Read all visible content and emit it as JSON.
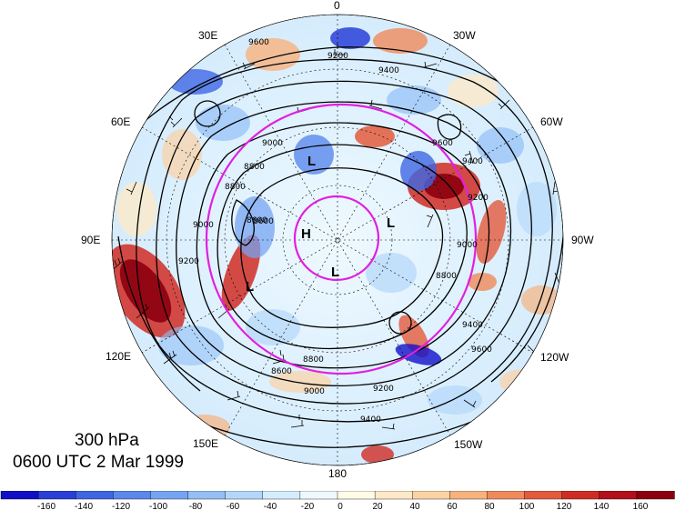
{
  "title": {
    "level": "300 hPa",
    "time": "0600 UTC 2 Mar 1999"
  },
  "longitude_labels": [
    "0",
    "30W",
    "60W",
    "90W",
    "120W",
    "150W",
    "180",
    "150E",
    "120E",
    "90E",
    "60E",
    "30E"
  ],
  "contour_labels": [
    "9600",
    "9400",
    "9200",
    "9000",
    "8800",
    "8600",
    "8800",
    "9000",
    "9200",
    "9400",
    "9600",
    "8800",
    "8600",
    "9000",
    "9200",
    "9400",
    "9200",
    "9000",
    "8800",
    "8600",
    "9600",
    "9400"
  ],
  "pressure_centers": [
    "L",
    "H",
    "L",
    "L",
    "L"
  ],
  "colorbar": {
    "tick_labels": [
      "-160",
      "-140",
      "-120",
      "-100",
      "-80",
      "-60",
      "-40",
      "-20",
      "0",
      "20",
      "40",
      "60",
      "80",
      "100",
      "120",
      "140",
      "160"
    ],
    "colors": [
      "#1010c8",
      "#2a3fd8",
      "#3f66e3",
      "#5a88ec",
      "#75a4f2",
      "#93bff6",
      "#b3d7fa",
      "#d5ecfd",
      "#eef9fe",
      "#fffbe6",
      "#fde8c8",
      "#fbd2a4",
      "#f7b27d",
      "#f08a5a",
      "#e35a3c",
      "#d02c24",
      "#b3101a",
      "#8c0010"
    ]
  },
  "colors": {
    "magenta_circle": "#e020e0",
    "contour": "#000000"
  }
}
